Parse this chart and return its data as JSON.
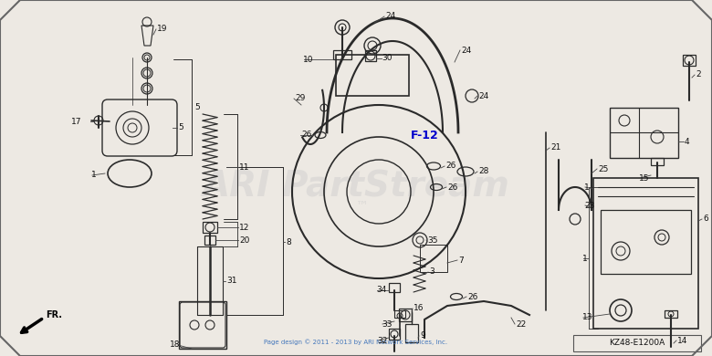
{
  "bg_color": "#ede9e3",
  "border_color": "#666666",
  "line_color": "#2a2a2a",
  "label_color": "#111111",
  "watermark_text": "ARI PartStream",
  "watermark_color": "#cccccc",
  "copyright_text": "Page design © 2011 - 2013 by ARI Network Services, Inc.",
  "copyright_color": "#4477bb",
  "part_label": "F-12",
  "part_label_color": "#0000cc",
  "catalog_code": "KZ48-E1200A",
  "figw": 7.8,
  "figh": 3.9,
  "dpi": 100
}
